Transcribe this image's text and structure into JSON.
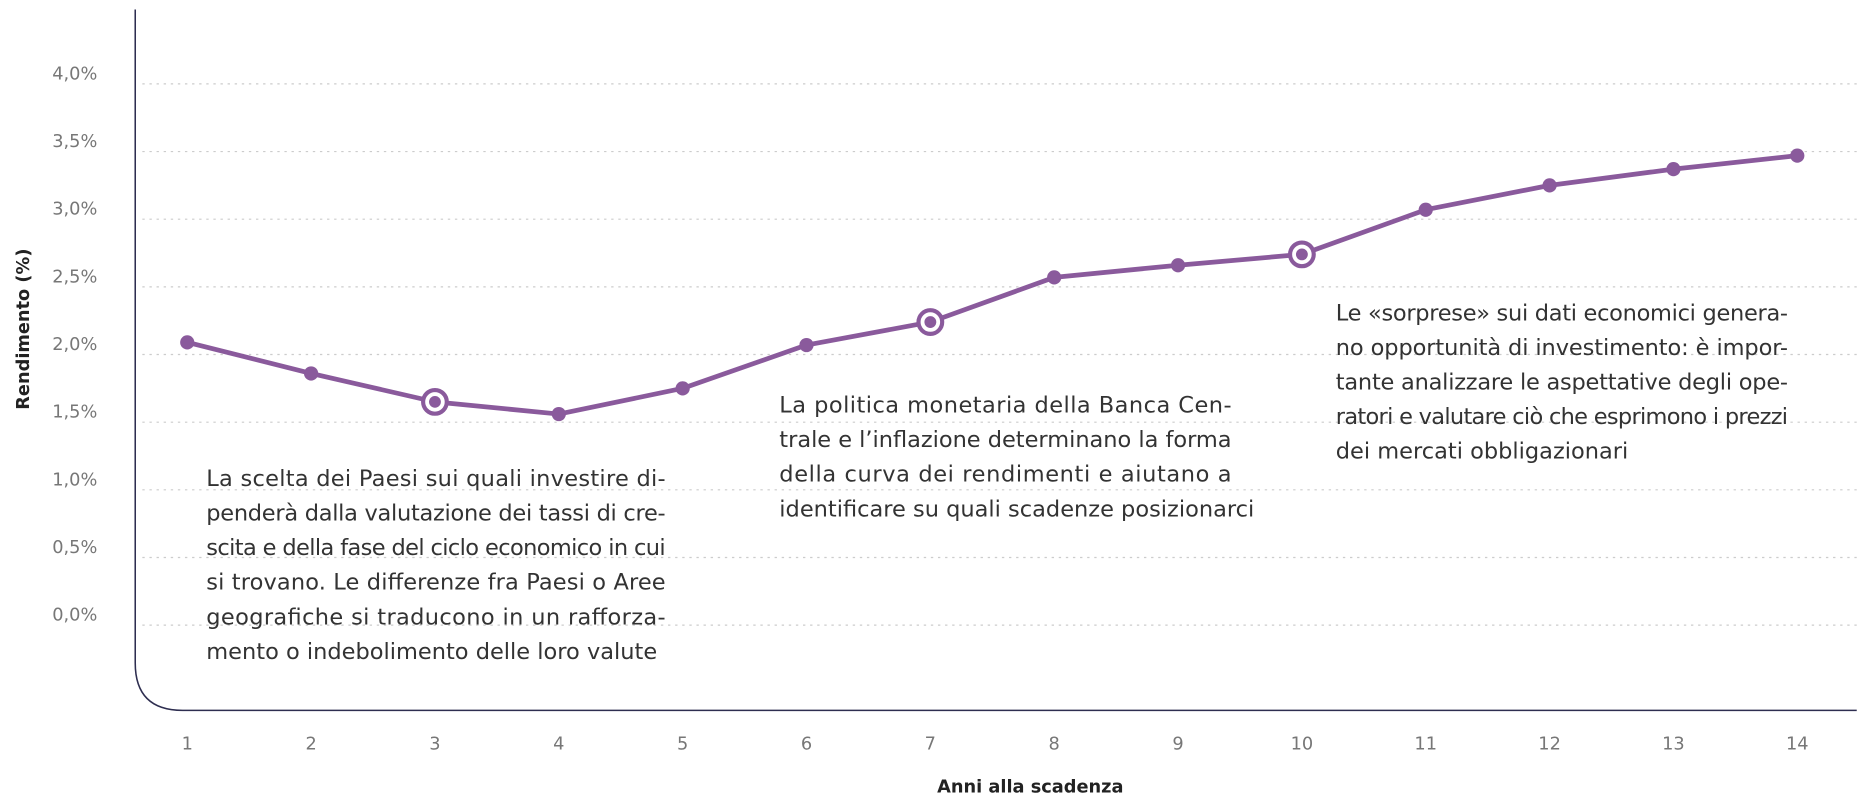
{
  "chart_data": {
    "type": "line",
    "x": [
      1,
      2,
      3,
      4,
      5,
      6,
      7,
      8,
      9,
      10,
      11,
      12,
      13,
      14
    ],
    "values": [
      2.02,
      1.79,
      1.58,
      1.49,
      1.68,
      2.0,
      2.17,
      2.5,
      2.59,
      2.67,
      3.0,
      3.18,
      3.3,
      3.4
    ],
    "color": "#8a5a9c",
    "highlight_x": [
      3,
      7,
      10
    ],
    "xlabel": "Anni alla scadenza",
    "ylabel": "Rendimento (%)",
    "xlim": [
      0.58,
      14.48
    ],
    "xticks": [
      1,
      2,
      3,
      4,
      5,
      6,
      7,
      8,
      9,
      10,
      11,
      12,
      13,
      14
    ],
    "ylim": [
      -0.7,
      4.48
    ],
    "yticks": [
      {
        "value": 0,
        "label": "0,0%"
      },
      {
        "value": 0.5,
        "label": "0,5%"
      },
      {
        "value": 1,
        "label": "1,0%"
      },
      {
        "value": 1.5,
        "label": "1,5%"
      },
      {
        "value": 2,
        "label": "2,0%"
      },
      {
        "value": 2.5,
        "label": "2,5%"
      },
      {
        "value": 3,
        "label": "3,0%"
      },
      {
        "value": 3.5,
        "label": "3,5%"
      },
      {
        "value": 4,
        "label": "4,0%"
      }
    ],
    "grid": true,
    "annotations": [
      {
        "lines": [
          "La scelta dei Paesi sui quali investire di-",
          "penderà dalla valutazione dei tassi di cre-",
          "scita e della fase del ciclo economico in cui",
          "si trovano. Le differenze fra Paesi o Aree",
          "geografiche si traducono in un rafforza-",
          "mento o indebolimento delle  loro valute"
        ]
      },
      {
        "lines": [
          "La politica monetaria della Banca Cen-",
          "trale e l’inflazione determinano la forma",
          "della curva dei rendimenti e aiutano a",
          "identificare su quali scadenze posizionarci"
        ]
      },
      {
        "lines": [
          "Le «sorprese» sui dati economici genera-",
          "no opportunità di investimento: è impor-",
          "tante analizzare le aspettative degli ope-",
          "ratori e valutare ciò che esprimono i prezzi",
          "dei mercati obbligazionari"
        ]
      }
    ]
  }
}
